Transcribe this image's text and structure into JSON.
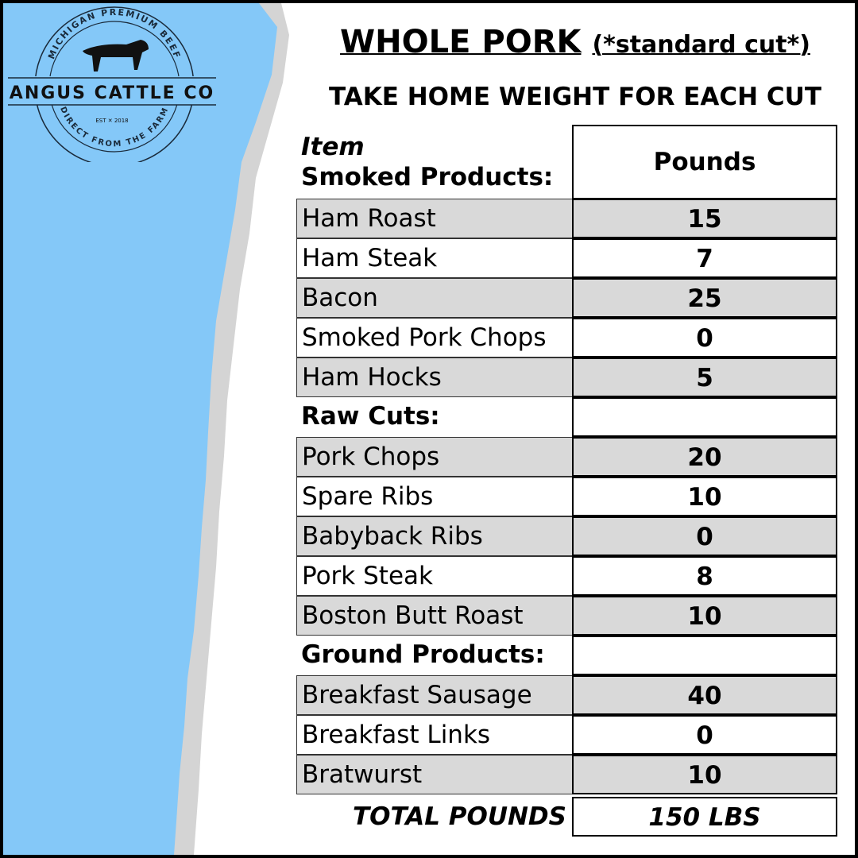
{
  "brand": {
    "logo_text": "ANGUS CATTLE CO",
    "logo_top": "MICHIGAN PREMIUM BEEF",
    "logo_bottom": "DIRECT FROM THE FARM",
    "logo_est": "EST 2018"
  },
  "colors": {
    "background_blue": "#84c8f8",
    "row_shade": "#d9d9d9"
  },
  "title": {
    "main": "WHOLE PORK",
    "qualifier": "(*standard cut*)",
    "subtitle": "TAKE HOME WEIGHT FOR EACH CUT"
  },
  "table": {
    "header_item": "Item",
    "header_section": "Smoked Products:",
    "header_pounds": "Pounds",
    "rows": [
      {
        "item": "Ham Roast",
        "pounds": "15"
      },
      {
        "item": "Ham Steak",
        "pounds": "7"
      },
      {
        "item": "Bacon",
        "pounds": "25"
      },
      {
        "item": "Smoked Pork Chops",
        "pounds": "0"
      },
      {
        "item": "Ham Hocks",
        "pounds": "5"
      },
      {
        "item": "Raw Cuts:",
        "pounds": "",
        "section": true
      },
      {
        "item": "Pork Chops",
        "pounds": "20"
      },
      {
        "item": "Spare Ribs",
        "pounds": "10"
      },
      {
        "item": "Babyback Ribs",
        "pounds": "0"
      },
      {
        "item": "Pork Steak",
        "pounds": "8"
      },
      {
        "item": "Boston Butt Roast",
        "pounds": "10"
      },
      {
        "item": "Ground Products:",
        "pounds": "",
        "section": true
      },
      {
        "item": "Breakfast Sausage",
        "pounds": "40"
      },
      {
        "item": "Breakfast Links",
        "pounds": "0"
      },
      {
        "item": "Bratwurst",
        "pounds": "10"
      }
    ],
    "total_label": "TOTAL POUNDS",
    "total_value": "150 LBS"
  }
}
